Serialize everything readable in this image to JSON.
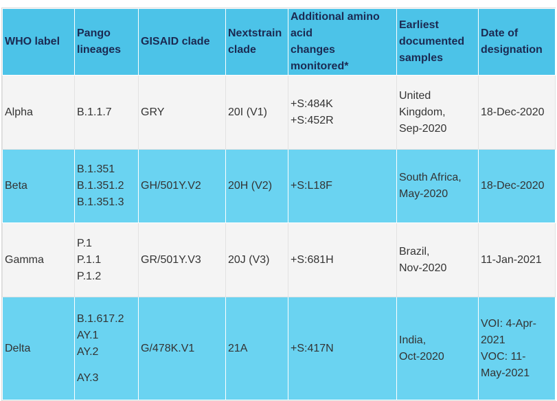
{
  "table": {
    "headers": [
      [
        "WHO label"
      ],
      [
        "Pango",
        "lineages"
      ],
      [
        "GISAID clade"
      ],
      [
        "Nextstrain",
        "clade"
      ],
      [
        "Additional amino",
        "acid",
        "changes monitored*"
      ],
      [
        "Earliest",
        "documented",
        "samples"
      ],
      [
        "Date of",
        "designation"
      ]
    ],
    "rows": [
      [
        [
          "Alpha"
        ],
        [
          "B.1.1.7"
        ],
        [
          "GRY"
        ],
        [
          "20I (V1)"
        ],
        [
          "+S:484K",
          "+S:452R"
        ],
        [
          "United",
          "Kingdom,",
          "Sep-2020"
        ],
        [
          "18-Dec-2020"
        ]
      ],
      [
        [
          "Beta"
        ],
        [
          "B.1.351",
          "B.1.351.2",
          "B.1.351.3"
        ],
        [
          "GH/501Y.V2"
        ],
        [
          "20H (V2)"
        ],
        [
          "+S:L18F"
        ],
        [
          "South Africa,",
          "May-2020"
        ],
        [
          "18-Dec-2020"
        ]
      ],
      [
        [
          "Gamma"
        ],
        [
          "P.1",
          "P.1.1",
          "P.1.2"
        ],
        [
          "GR/501Y.V3"
        ],
        [
          "20J (V3)"
        ],
        [
          "+S:681H"
        ],
        [
          "Brazil,",
          "Nov-2020"
        ],
        [
          "11-Jan-2021"
        ]
      ],
      [
        [
          "Delta"
        ],
        [
          "B.1.617.2",
          "AY.1",
          "AY.2",
          "AY.3"
        ],
        [
          "G/478K.V1"
        ],
        [
          "21A"
        ],
        [
          "+S:417N"
        ],
        [
          "India,",
          "Oct-2020"
        ],
        [
          "VOI: 4-Apr-",
          "2021",
          "VOC: 11-",
          "May-2021"
        ]
      ]
    ]
  }
}
